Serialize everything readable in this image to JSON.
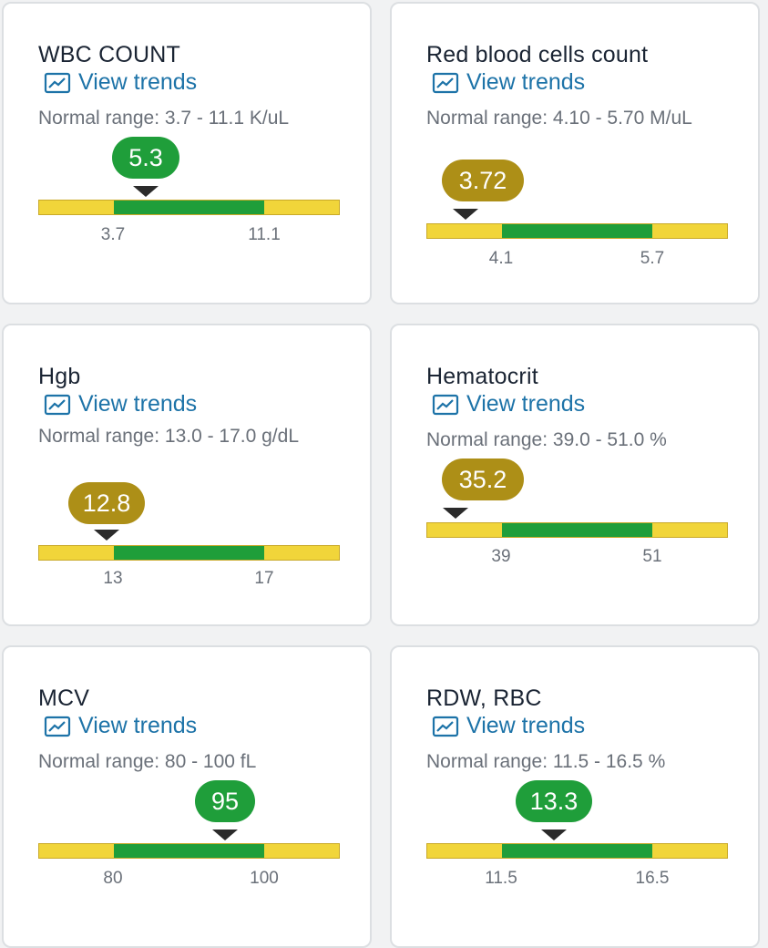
{
  "colors": {
    "in_range": "#1f9e3a",
    "out_of_range": "#ad8f17",
    "link": "#1d73a8",
    "bar_low_high": "#f1d53a"
  },
  "view_trends_label": "View trends",
  "cards": [
    {
      "title": "WBC COUNT",
      "normal_range": "Normal range: 3.7 - 11.1 K/uL",
      "value": "5.3",
      "status": "in_range",
      "low_tick": "3.7",
      "high_tick": "11.1"
    },
    {
      "title": "Red blood cells count",
      "normal_range": "Normal range: 4.10 - 5.70 M/uL",
      "value": "3.72",
      "status": "out_of_range",
      "low_tick": "4.1",
      "high_tick": "5.7"
    },
    {
      "title": "Hgb",
      "normal_range": "Normal range: 13.0 - 17.0 g/dL",
      "value": "12.8",
      "status": "out_of_range",
      "low_tick": "13",
      "high_tick": "17"
    },
    {
      "title": "Hematocrit",
      "normal_range": "Normal range: 39.0 - 51.0 %",
      "value": "35.2",
      "status": "out_of_range",
      "low_tick": "39",
      "high_tick": "51"
    },
    {
      "title": "MCV",
      "normal_range": "Normal range: 80 - 100 fL",
      "value": "95",
      "status": "in_range",
      "low_tick": "80",
      "high_tick": "100"
    },
    {
      "title": "RDW, RBC",
      "normal_range": "Normal range: 11.5 - 16.5 %",
      "value": "13.3",
      "status": "in_range",
      "low_tick": "11.5",
      "high_tick": "16.5"
    }
  ]
}
